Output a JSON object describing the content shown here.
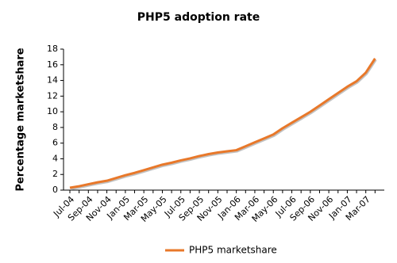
{
  "chart_data": {
    "type": "line",
    "title": "PHP5 adoption rate",
    "ylabel": "Percentage marketshare",
    "categories": [
      "Jul-04",
      null,
      "Sep-04",
      null,
      "Nov-04",
      null,
      "Jan-05",
      null,
      "Mar-05",
      null,
      "May-05",
      null,
      "Jul-05",
      null,
      "Sep-05",
      null,
      "Nov-05",
      null,
      "Jan-06",
      null,
      "Mar-06",
      null,
      "May-06",
      null,
      "Jul-06",
      null,
      "Sep-06",
      null,
      "Nov-06",
      null,
      "Jan-07",
      null,
      "Mar-07",
      null
    ],
    "series": [
      {
        "name": "PHP5 marketshare",
        "color": "#e8782a",
        "values": [
          0.3,
          0.5,
          0.75,
          1.0,
          1.2,
          1.55,
          1.9,
          2.2,
          2.55,
          2.9,
          3.25,
          3.5,
          3.8,
          4.05,
          4.35,
          4.6,
          4.8,
          4.95,
          5.1,
          5.6,
          6.1,
          6.6,
          7.1,
          7.9,
          8.6,
          9.3,
          10.0,
          10.8,
          11.6,
          12.4,
          13.2,
          13.9,
          15.0,
          16.8
        ]
      }
    ],
    "ylim": [
      0,
      18
    ],
    "yticks": [
      0,
      2,
      4,
      6,
      8,
      10,
      12,
      14,
      16,
      18
    ],
    "grid": false,
    "legend": "bottom"
  }
}
